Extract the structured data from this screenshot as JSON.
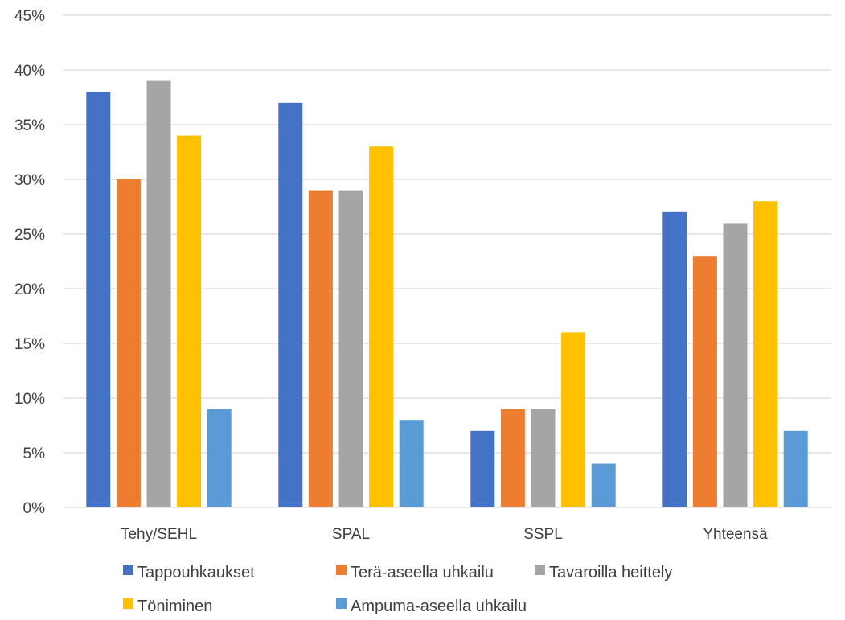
{
  "chart_data": {
    "type": "bar",
    "title": "",
    "xlabel": "",
    "ylabel": "",
    "ylim": [
      0,
      45
    ],
    "yticks": [
      0,
      5,
      10,
      15,
      20,
      25,
      30,
      35,
      40,
      45
    ],
    "ytick_format": "{v}%",
    "grid": true,
    "legend_position": "bottom",
    "categories": [
      "Tehy/SEHL",
      "SPAL",
      "SSPL",
      "Yhteensä"
    ],
    "series": [
      {
        "name": "Tappouhkaukset",
        "color": "#4472C4",
        "values": [
          38,
          37,
          7,
          27
        ]
      },
      {
        "name": "Terä-aseella uhkailu",
        "color": "#ED7D31",
        "values": [
          30,
          29,
          9,
          23
        ]
      },
      {
        "name": "Tavaroilla heittely",
        "color": "#A5A5A5",
        "values": [
          39,
          29,
          9,
          26
        ]
      },
      {
        "name": "Töniminen",
        "color": "#FFC000",
        "values": [
          34,
          33,
          16,
          28
        ]
      },
      {
        "name": "Ampuma-aseella uhkailu",
        "color": "#5B9BD5",
        "values": [
          9,
          8,
          4,
          7
        ]
      }
    ]
  }
}
